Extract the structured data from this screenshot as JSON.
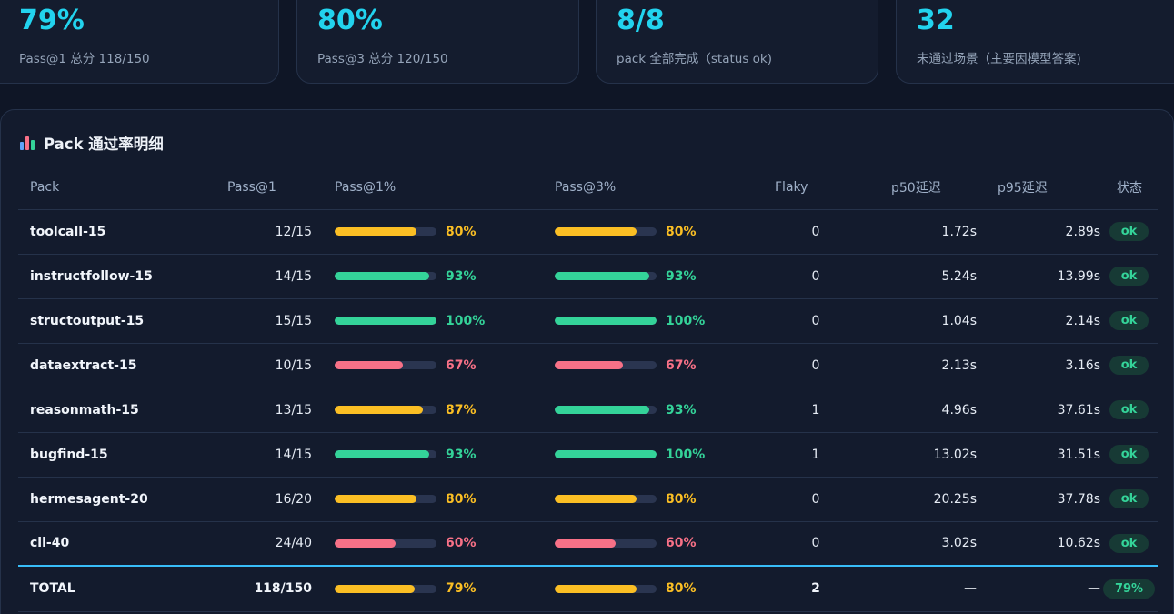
{
  "stats": [
    {
      "value": "79%",
      "label": "Pass@1 总分 118/150"
    },
    {
      "value": "80%",
      "label": "Pass@3 总分 120/150"
    },
    {
      "value": "8/8",
      "label": "pack 全部完成（status ok)"
    },
    {
      "value": "32",
      "label": "未通过场景（主要因模型答案)"
    }
  ],
  "panel": {
    "title": "Pack 通过率明细",
    "title_icon": "bar-chart-icon"
  },
  "table": {
    "headers": [
      "Pack",
      "Pass@1",
      "Pass@1%",
      "Pass@3%",
      "Flaky",
      "p50延迟",
      "p95延迟",
      "状态"
    ],
    "rows": [
      {
        "pack": "toolcall-15",
        "pass1": "12/15",
        "pass1_pct": "80%",
        "pass1_value": 80,
        "pass3_pct": "80%",
        "pass3_value": 80,
        "flaky": "0",
        "p50": "1.72s",
        "p95": "2.89s",
        "status": "ok"
      },
      {
        "pack": "instructfollow-15",
        "pass1": "14/15",
        "pass1_pct": "93%",
        "pass1_value": 93,
        "pass3_pct": "93%",
        "pass3_value": 93,
        "flaky": "0",
        "p50": "5.24s",
        "p95": "13.99s",
        "status": "ok"
      },
      {
        "pack": "structoutput-15",
        "pass1": "15/15",
        "pass1_pct": "100%",
        "pass1_value": 100,
        "pass3_pct": "100%",
        "pass3_value": 100,
        "flaky": "0",
        "p50": "1.04s",
        "p95": "2.14s",
        "status": "ok"
      },
      {
        "pack": "dataextract-15",
        "pass1": "10/15",
        "pass1_pct": "67%",
        "pass1_value": 67,
        "pass3_pct": "67%",
        "pass3_value": 67,
        "flaky": "0",
        "p50": "2.13s",
        "p95": "3.16s",
        "status": "ok"
      },
      {
        "pack": "reasonmath-15",
        "pass1": "13/15",
        "pass1_pct": "87%",
        "pass1_value": 87,
        "pass3_pct": "93%",
        "pass3_value": 93,
        "flaky": "1",
        "p50": "4.96s",
        "p95": "37.61s",
        "status": "ok"
      },
      {
        "pack": "bugfind-15",
        "pass1": "14/15",
        "pass1_pct": "93%",
        "pass1_value": 93,
        "pass3_pct": "100%",
        "pass3_value": 100,
        "flaky": "1",
        "p50": "13.02s",
        "p95": "31.51s",
        "status": "ok"
      },
      {
        "pack": "hermesagent-20",
        "pass1": "16/20",
        "pass1_pct": "80%",
        "pass1_value": 80,
        "pass3_pct": "80%",
        "pass3_value": 80,
        "flaky": "0",
        "p50": "20.25s",
        "p95": "37.78s",
        "status": "ok"
      },
      {
        "pack": "cli-40",
        "pass1": "24/40",
        "pass1_pct": "60%",
        "pass1_value": 60,
        "pass3_pct": "60%",
        "pass3_value": 60,
        "flaky": "0",
        "p50": "3.02s",
        "p95": "10.62s",
        "status": "ok"
      }
    ],
    "total": {
      "pack": "TOTAL",
      "pass1": "118/150",
      "pass1_pct": "79%",
      "pass1_value": 79,
      "pass3_pct": "80%",
      "pass3_value": 80,
      "flaky": "2",
      "p50": "—",
      "p95": "—",
      "status": "79%"
    }
  },
  "colors": {
    "accent": "#22d3ee",
    "good": "#34d399",
    "warn": "#fbbf24",
    "bad": "#f87187",
    "badge_bg": "#173a35",
    "total_rule": "#38bdf8"
  }
}
